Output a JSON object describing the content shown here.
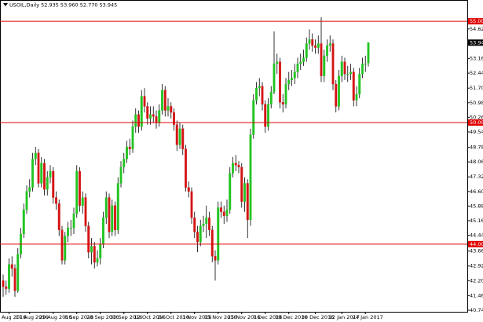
{
  "chart_data": {
    "type": "candlestick",
    "title": "USOIL,Daily  52.935 53.960 52.770 53.945",
    "categories": [
      null,
      null,
      "8 Aug 2016",
      null,
      null,
      null,
      null,
      null,
      null,
      "17 Aug 2016",
      null,
      null,
      null,
      null,
      null,
      null,
      null,
      "29 Aug 2016",
      null,
      null,
      null,
      null,
      null,
      null,
      null,
      "8 Sep 2016",
      null,
      null,
      null,
      null,
      null,
      null,
      null,
      "20 Sep 2016",
      null,
      null,
      null,
      null,
      null,
      null,
      null,
      "30 Sep 2016",
      null,
      null,
      null,
      null,
      null,
      null,
      null,
      "12 Oct 2016",
      null,
      null,
      null,
      null,
      null,
      null,
      null,
      "24 Oct 2016",
      null,
      null,
      null,
      null,
      null,
      null,
      null,
      "3 Nov 2016",
      null,
      null,
      null,
      null,
      null,
      null,
      null,
      "15 Nov 2016",
      null,
      null,
      null,
      null,
      null,
      null,
      null,
      "25 Nov 2016",
      null,
      null,
      null,
      null,
      null,
      null,
      null,
      "7 Dec 2016",
      null,
      null,
      null,
      null,
      null,
      null,
      null,
      "19 Dec 2016",
      null,
      null,
      null,
      null,
      null,
      null,
      null,
      null,
      "30 Dec 2016",
      null,
      null,
      null,
      null,
      null,
      null,
      null,
      null,
      "12 Jan 2017",
      null,
      null,
      null,
      null,
      null,
      null,
      null,
      "24 Jan 2017",
      null
    ],
    "open": [
      42.2,
      41.9,
      41.8,
      43.0,
      42.8,
      41.7,
      43.5,
      44.5,
      45.7,
      46.6,
      46.8,
      48.2,
      48.5,
      47.0,
      48.0,
      46.7,
      47.3,
      47.6,
      46.3,
      46.0,
      44.7,
      43.2,
      44.4,
      44.8,
      44.8,
      45.5,
      47.6,
      45.9,
      46.3,
      44.9,
      43.6,
      43.9,
      43.1,
      43.3,
      44.0,
      45.3,
      46.3,
      44.6,
      45.9,
      44.7,
      47.0,
      47.8,
      48.2,
      48.8,
      48.7,
      49.8,
      50.4,
      49.8,
      51.3,
      50.8,
      50.2,
      50.4,
      50.3,
      50.0,
      50.6,
      51.6,
      50.6,
      50.8,
      50.5,
      49.9,
      48.9,
      49.7,
      48.7,
      46.8,
      46.6,
      45.3,
      44.6,
      44.1,
      44.9,
      45.0,
      45.3,
      44.7,
      43.4,
      43.2,
      45.8,
      45.6,
      45.4,
      45.7,
      47.5,
      48.0,
      47.9,
      47.8,
      46.1,
      47.0,
      45.2,
      49.4,
      51.1,
      51.7,
      51.8,
      50.9,
      49.8,
      50.9,
      51.5,
      52.9,
      53.0,
      51.0,
      50.9,
      51.9,
      52.1,
      52.2,
      52.5,
      52.9,
      53.0,
      53.2,
      53.9,
      54.1,
      53.8,
      53.7,
      53.9,
      52.3,
      53.3,
      53.8,
      53.9,
      51.9,
      50.8,
      52.3,
      53.0,
      52.4,
      52.4,
      52.5,
      51.1,
      51.4,
      52.4,
      52.9,
      52.935
    ],
    "high": [
      42.5,
      42.2,
      43.3,
      43.4,
      43.0,
      43.8,
      44.8,
      46.0,
      46.9,
      47.2,
      48.5,
      48.8,
      48.7,
      48.3,
      48.2,
      47.6,
      47.9,
      47.8,
      46.6,
      46.2,
      44.9,
      44.6,
      45.1,
      45.2,
      45.8,
      47.9,
      47.8,
      46.6,
      46.5,
      45.1,
      44.3,
      44.1,
      43.7,
      44.3,
      45.6,
      46.6,
      46.5,
      46.2,
      46.1,
      47.3,
      48.1,
      48.5,
      49.1,
      49.2,
      50.1,
      50.7,
      50.6,
      51.6,
      51.7,
      51.0,
      50.8,
      50.8,
      50.6,
      50.9,
      51.9,
      51.8,
      51.2,
      51.0,
      50.7,
      50.1,
      50.0,
      49.9,
      48.9,
      47.1,
      46.8,
      45.6,
      44.9,
      45.2,
      45.4,
      45.9,
      45.6,
      44.9,
      43.7,
      46.1,
      46.1,
      45.9,
      46.2,
      47.8,
      48.3,
      48.4,
      48.1,
      48.0,
      47.3,
      47.2,
      49.7,
      51.4,
      52.0,
      52.2,
      52.0,
      51.1,
      51.2,
      51.8,
      54.5,
      53.4,
      53.2,
      51.4,
      52.2,
      52.5,
      52.6,
      52.9,
      53.2,
      53.4,
      53.6,
      54.2,
      54.6,
      54.4,
      54.1,
      54.3,
      55.2,
      53.6,
      54.1,
      54.3,
      54.1,
      52.1,
      52.6,
      53.3,
      53.2,
      52.8,
      52.9,
      52.7,
      51.8,
      52.7,
      53.2,
      53.3,
      53.96
    ],
    "low": [
      41.4,
      41.5,
      41.6,
      42.4,
      41.4,
      41.6,
      43.3,
      44.3,
      45.5,
      46.3,
      46.6,
      47.9,
      46.8,
      46.8,
      46.4,
      46.4,
      47.0,
      46.0,
      45.7,
      44.4,
      43.0,
      43.0,
      44.1,
      44.4,
      44.5,
      45.3,
      45.6,
      45.5,
      44.6,
      43.3,
      43.0,
      42.8,
      42.9,
      43.0,
      43.8,
      45.0,
      44.3,
      44.4,
      44.4,
      44.5,
      46.8,
      47.5,
      48.0,
      48.4,
      48.5,
      49.5,
      49.5,
      49.6,
      50.5,
      49.9,
      49.9,
      50.0,
      49.7,
      49.8,
      50.4,
      50.3,
      50.3,
      50.2,
      49.6,
      48.6,
      48.7,
      48.4,
      46.6,
      46.3,
      45.0,
      44.3,
      43.6,
      43.9,
      44.6,
      44.3,
      44.4,
      43.1,
      42.2,
      43.0,
      45.3,
      45.0,
      45.1,
      45.5,
      47.3,
      47.6,
      47.5,
      45.8,
      45.6,
      44.3,
      44.9,
      49.2,
      50.9,
      51.3,
      50.6,
      49.5,
      49.6,
      50.7,
      51.4,
      52.4,
      50.7,
      50.5,
      50.7,
      51.6,
      51.8,
      51.9,
      52.2,
      52.6,
      52.8,
      53.0,
      53.6,
      53.5,
      53.4,
      53.4,
      52.0,
      52.0,
      53.0,
      53.5,
      51.6,
      50.5,
      50.6,
      52.0,
      52.1,
      52.0,
      52.1,
      50.8,
      50.8,
      51.2,
      52.2,
      52.5,
      52.77
    ],
    "close": [
      41.9,
      41.8,
      43.0,
      42.8,
      41.7,
      43.5,
      44.5,
      45.7,
      46.6,
      46.8,
      48.2,
      48.5,
      47.0,
      48.0,
      46.7,
      47.3,
      47.6,
      46.3,
      46.0,
      44.7,
      43.2,
      44.4,
      44.8,
      44.8,
      45.5,
      47.6,
      45.9,
      46.3,
      44.9,
      43.6,
      43.9,
      43.1,
      43.3,
      44.0,
      45.3,
      46.3,
      44.6,
      45.9,
      44.7,
      47.0,
      47.8,
      48.2,
      48.8,
      48.7,
      49.8,
      50.4,
      49.8,
      51.3,
      50.8,
      50.2,
      50.4,
      50.3,
      50.0,
      50.6,
      51.6,
      50.6,
      50.8,
      50.5,
      49.9,
      48.9,
      49.7,
      48.7,
      46.8,
      46.6,
      45.3,
      44.6,
      44.1,
      44.9,
      45.0,
      45.3,
      44.7,
      43.4,
      43.2,
      45.8,
      45.6,
      45.4,
      45.7,
      47.5,
      48.0,
      47.9,
      47.8,
      46.1,
      47.0,
      45.2,
      49.4,
      51.1,
      51.7,
      51.8,
      50.9,
      49.8,
      50.9,
      51.5,
      52.9,
      53.0,
      51.0,
      50.9,
      51.9,
      52.1,
      52.2,
      52.5,
      52.9,
      53.0,
      53.2,
      53.9,
      54.1,
      53.8,
      53.7,
      53.9,
      52.3,
      53.3,
      53.8,
      53.9,
      51.9,
      50.8,
      52.3,
      53.0,
      52.4,
      52.4,
      52.5,
      51.1,
      51.4,
      52.4,
      52.9,
      52.9,
      53.945
    ],
    "up_color": "#22c422",
    "down_color": "#d41414",
    "ylim": [
      40.66,
      56.05
    ],
    "yticks": [
      {
        "value": 40.74,
        "label": "40.740"
      },
      {
        "value": 41.46,
        "label": "41.460"
      },
      {
        "value": 42.2,
        "label": "42.200"
      },
      {
        "value": 42.92,
        "label": "42.920"
      },
      {
        "value": 43.66,
        "label": "43.660"
      },
      {
        "value": 44.44,
        "label": "44.440"
      },
      {
        "value": 45.16,
        "label": "45.160"
      },
      {
        "value": 45.88,
        "label": "45.880"
      },
      {
        "value": 46.6,
        "label": "46.600"
      },
      {
        "value": 47.32,
        "label": "47.320"
      },
      {
        "value": 48.06,
        "label": "48.060"
      },
      {
        "value": 48.78,
        "label": "48.780"
      },
      {
        "value": 49.54,
        "label": "49.540"
      },
      {
        "value": 50.26,
        "label": "50.260"
      },
      {
        "value": 50.98,
        "label": "50.980"
      },
      {
        "value": 51.7,
        "label": "51.700"
      },
      {
        "value": 52.44,
        "label": "52.440"
      },
      {
        "value": 53.16,
        "label": "53.160"
      },
      {
        "value": 54.62,
        "label": "54.620"
      }
    ],
    "levels": [
      {
        "value": 55,
        "label": "55.000"
      },
      {
        "value": 50,
        "label": "50.000"
      },
      {
        "value": 44,
        "label": "44.000"
      }
    ],
    "level_color": "#e00000",
    "last_price": {
      "value": 53.945,
      "label": "53.945"
    }
  }
}
